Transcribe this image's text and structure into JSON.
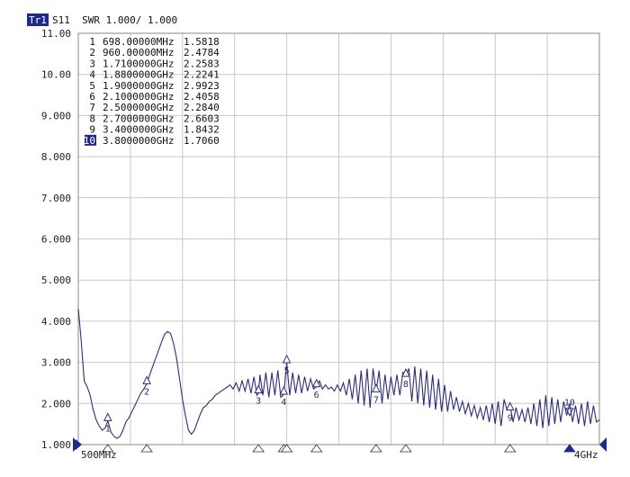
{
  "header": {
    "trace_badge": "Tr1",
    "trace_desc": "S11  SWR 1.000/ 1.000"
  },
  "colors": {
    "trace": "#2e2e78",
    "grid": "#c8c8c8",
    "frame": "#888888",
    "badge_bg": "#1c2a8c",
    "badge_fg": "#ffffff",
    "pointer": "#1c2a8c"
  },
  "chart_data": {
    "type": "line",
    "y_ticks": [
      "11.00",
      "10.00",
      "9.000",
      "8.000",
      "7.000",
      "6.000",
      "5.000",
      "4.000",
      "3.000",
      "2.000",
      "1.000"
    ],
    "ylim": [
      1.0,
      11.0
    ],
    "xlim_mhz": [
      500,
      4000
    ],
    "x_start_label": "500MHz",
    "x_stop_label": "4GHz",
    "markers": [
      {
        "num": "1",
        "freq": "698.00000MHz",
        "value": "1.5818",
        "x_mhz": 698,
        "y": 1.5818
      },
      {
        "num": "2",
        "freq": "960.00000MHz",
        "value": "2.4784",
        "x_mhz": 960,
        "y": 2.4784
      },
      {
        "num": "3",
        "freq": "1.7100000GHz",
        "value": "2.2583",
        "x_mhz": 1710,
        "y": 2.2583
      },
      {
        "num": "4",
        "freq": "1.8800000GHz",
        "value": "2.2241",
        "x_mhz": 1880,
        "y": 2.2241
      },
      {
        "num": "5",
        "freq": "1.9000000GHz",
        "value": "2.9923",
        "x_mhz": 1900,
        "y": 2.9923
      },
      {
        "num": "6",
        "freq": "2.1000000GHz",
        "value": "2.4058",
        "x_mhz": 2100,
        "y": 2.4058
      },
      {
        "num": "7",
        "freq": "2.5000000GHz",
        "value": "2.2840",
        "x_mhz": 2500,
        "y": 2.284
      },
      {
        "num": "8",
        "freq": "2.7000000GHz",
        "value": "2.6603",
        "x_mhz": 2700,
        "y": 2.6603
      },
      {
        "num": "9",
        "freq": "3.4000000GHz",
        "value": "1.8432",
        "x_mhz": 3400,
        "y": 1.8432
      },
      {
        "num": "10",
        "freq": "3.8000000GHz",
        "value": "1.7060",
        "x_mhz": 3800,
        "y": 1.706,
        "active": true
      }
    ],
    "series": [
      {
        "x": [
          500,
          510,
          520,
          530,
          540,
          560,
          580,
          600,
          620,
          640,
          660,
          680,
          698,
          720,
          740,
          760,
          780,
          800,
          820,
          840,
          860,
          880,
          900,
          920,
          940,
          960,
          980,
          1000,
          1020,
          1040,
          1060,
          1080,
          1100,
          1120,
          1140,
          1160,
          1180,
          1200,
          1220,
          1240,
          1260,
          1280,
          1300,
          1320,
          1340,
          1360,
          1380,
          1400,
          1420,
          1440,
          1460,
          1480,
          1500,
          1520,
          1540,
          1560,
          1580,
          1600,
          1620,
          1640,
          1660,
          1680,
          1700,
          1710,
          1720,
          1740,
          1760,
          1780,
          1800,
          1820,
          1840,
          1860,
          1880,
          1900,
          1920,
          1940,
          1960,
          1980,
          2000,
          2020,
          2040,
          2060,
          2080,
          2100,
          2120,
          2140,
          2160,
          2180,
          2200,
          2220,
          2240,
          2260,
          2280,
          2300,
          2320,
          2340,
          2360,
          2380,
          2400,
          2420,
          2440,
          2460,
          2480,
          2500,
          2520,
          2540,
          2560,
          2580,
          2600,
          2620,
          2640,
          2660,
          2680,
          2700,
          2720,
          2740,
          2760,
          2780,
          2800,
          2820,
          2840,
          2860,
          2880,
          2900,
          2920,
          2940,
          2960,
          2980,
          3000,
          3020,
          3040,
          3060,
          3080,
          3100,
          3120,
          3140,
          3160,
          3180,
          3200,
          3220,
          3240,
          3260,
          3280,
          3300,
          3320,
          3340,
          3360,
          3380,
          3400,
          3420,
          3440,
          3460,
          3480,
          3500,
          3520,
          3540,
          3560,
          3580,
          3600,
          3620,
          3640,
          3660,
          3680,
          3700,
          3720,
          3740,
          3760,
          3780,
          3800,
          3820,
          3840,
          3860,
          3880,
          3900,
          3920,
          3940,
          3960,
          3980,
          4000
        ],
        "y": [
          4.3,
          3.9,
          3.5,
          3.0,
          2.55,
          2.4,
          2.2,
          1.85,
          1.6,
          1.45,
          1.35,
          1.4,
          1.58,
          1.3,
          1.2,
          1.15,
          1.2,
          1.35,
          1.55,
          1.65,
          1.8,
          1.95,
          2.1,
          2.25,
          2.35,
          2.48,
          2.7,
          2.9,
          3.1,
          3.3,
          3.5,
          3.68,
          3.75,
          3.7,
          3.45,
          3.1,
          2.6,
          2.1,
          1.7,
          1.35,
          1.25,
          1.35,
          1.55,
          1.75,
          1.9,
          1.95,
          2.05,
          2.1,
          2.2,
          2.25,
          2.3,
          2.35,
          2.4,
          2.45,
          2.35,
          2.5,
          2.3,
          2.55,
          2.3,
          2.6,
          2.25,
          2.65,
          2.2,
          2.26,
          2.7,
          2.2,
          2.75,
          2.15,
          2.75,
          2.2,
          2.8,
          2.15,
          2.22,
          2.99,
          2.2,
          2.75,
          2.25,
          2.7,
          2.25,
          2.65,
          2.3,
          2.6,
          2.35,
          2.41,
          2.55,
          2.35,
          2.45,
          2.35,
          2.4,
          2.3,
          2.45,
          2.3,
          2.5,
          2.2,
          2.6,
          2.1,
          2.7,
          2.0,
          2.8,
          1.95,
          2.85,
          1.9,
          2.85,
          2.28,
          2.8,
          2.0,
          2.7,
          2.1,
          2.65,
          2.2,
          2.7,
          2.2,
          2.75,
          2.66,
          2.85,
          2.05,
          2.9,
          2.0,
          2.85,
          1.95,
          2.8,
          1.9,
          2.7,
          1.85,
          2.6,
          1.8,
          2.45,
          1.8,
          2.3,
          1.85,
          2.15,
          1.8,
          2.05,
          1.75,
          2.0,
          1.7,
          1.95,
          1.65,
          1.9,
          1.6,
          1.95,
          1.55,
          2.0,
          1.5,
          2.05,
          1.45,
          2.1,
          1.84,
          1.95,
          1.55,
          1.9,
          1.6,
          1.85,
          1.55,
          1.9,
          1.5,
          2.0,
          1.45,
          2.1,
          1.4,
          2.2,
          1.45,
          2.15,
          1.5,
          2.1,
          1.55,
          2.05,
          1.71,
          2.0,
          1.55,
          1.95,
          1.5,
          2.0,
          1.45,
          2.05,
          1.5,
          1.95,
          1.55,
          1.6
        ]
      }
    ]
  }
}
